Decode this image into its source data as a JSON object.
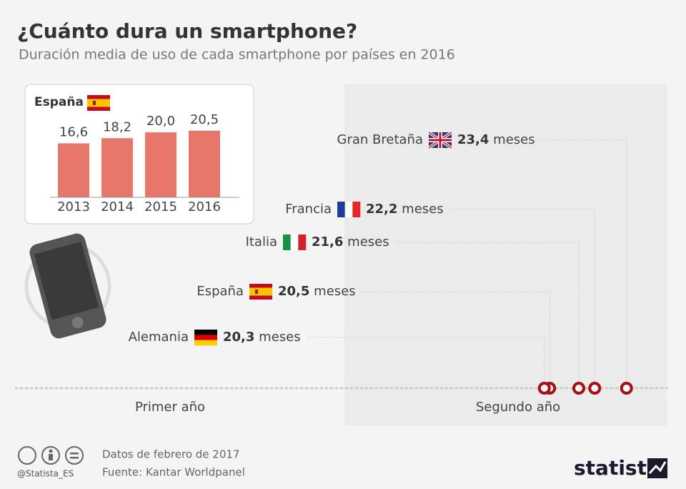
{
  "chart_data": [
    {
      "type": "dot",
      "title": "¿Cuánto dura un smartphone?",
      "subtitle": "Duración media de uso de cada smartphone por países en 2016",
      "categories": [
        "Gran Bretaña",
        "Francia",
        "Italia",
        "España",
        "Alemania"
      ],
      "values": [
        23.4,
        22.2,
        21.6,
        20.5,
        20.3
      ],
      "value_labels": [
        "23,4",
        "22,2",
        "21,6",
        "20,5",
        "20,3"
      ],
      "unit": "meses",
      "color": "#a50f15",
      "xlim": [
        0,
        24
      ],
      "periods": [
        "Primer año",
        "Segundo año"
      ]
    },
    {
      "type": "bar",
      "title": "España",
      "categories": [
        "2013",
        "2014",
        "2015",
        "2016"
      ],
      "values": [
        16.6,
        18.2,
        20.0,
        20.5
      ],
      "value_labels": [
        "16,6",
        "18,2",
        "20,0",
        "20,5"
      ],
      "color": "#e8776b",
      "ylim": [
        0,
        22
      ]
    }
  ],
  "footer": {
    "handle": "@Statista_ES",
    "date_note": "Datos de febrero de 2017",
    "source": "Fuente: Kantar Worldpanel",
    "brand": "statista"
  }
}
